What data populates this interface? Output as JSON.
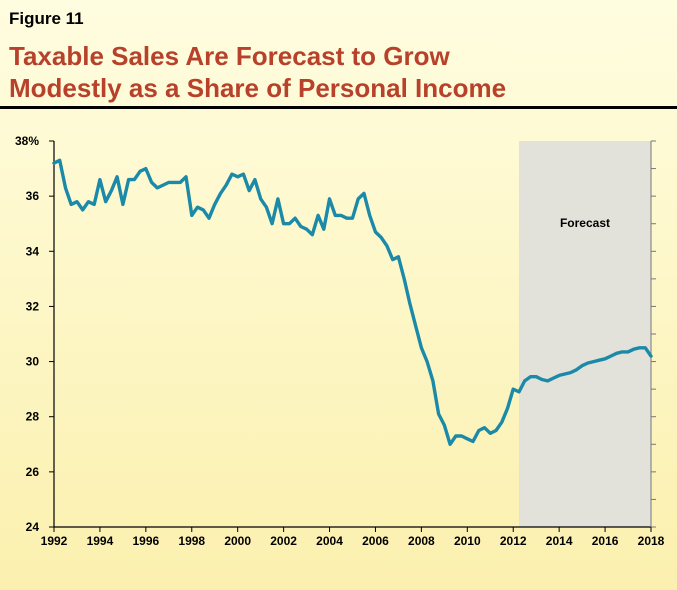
{
  "figure_label": "Figure 11",
  "title_line1": "Taxable Sales Are Forecast to Grow",
  "title_line2": "Modestly as a Share of Personal Income",
  "colors": {
    "line": "#1b8aa8",
    "forecast_shade": "#e2e2da",
    "title": "#b7412a"
  },
  "chart_data": {
    "type": "line",
    "title": "Taxable Sales Are Forecast to Grow Modestly as a Share of Personal Income",
    "xlabel": "",
    "ylabel": "",
    "xlim": [
      1992,
      2018
    ],
    "ylim": [
      24,
      38
    ],
    "y_ticks": [
      "38%",
      "36",
      "34",
      "32",
      "30",
      "28",
      "26",
      "24"
    ],
    "y_tick_values": [
      38,
      36,
      34,
      32,
      30,
      28,
      26,
      24
    ],
    "x_ticks": [
      "1992",
      "1994",
      "1996",
      "1998",
      "2000",
      "2002",
      "2004",
      "2006",
      "2008",
      "2010",
      "2012",
      "2014",
      "2016",
      "2018"
    ],
    "x_tick_values": [
      1992,
      1994,
      1996,
      1998,
      2000,
      2002,
      2004,
      2006,
      2008,
      2010,
      2012,
      2014,
      2016,
      2018
    ],
    "forecast_region": {
      "start": 2012.25,
      "end": 2018,
      "label": "Forecast"
    },
    "series": [
      {
        "points": [
          [
            1992.0,
            37.2
          ],
          [
            1992.25,
            37.3
          ],
          [
            1992.5,
            36.3
          ],
          [
            1992.75,
            35.7
          ],
          [
            1993.0,
            35.8
          ],
          [
            1993.25,
            35.5
          ],
          [
            1993.5,
            35.8
          ],
          [
            1993.75,
            35.7
          ],
          [
            1994.0,
            36.6
          ],
          [
            1994.25,
            35.8
          ],
          [
            1994.5,
            36.2
          ],
          [
            1994.75,
            36.7
          ],
          [
            1995.0,
            35.7
          ],
          [
            1995.25,
            36.6
          ],
          [
            1995.5,
            36.6
          ],
          [
            1995.75,
            36.9
          ],
          [
            1996.0,
            37.0
          ],
          [
            1996.25,
            36.5
          ],
          [
            1996.5,
            36.3
          ],
          [
            1996.75,
            36.4
          ],
          [
            1997.0,
            36.5
          ],
          [
            1997.25,
            36.5
          ],
          [
            1997.5,
            36.5
          ],
          [
            1997.75,
            36.7
          ],
          [
            1998.0,
            35.3
          ],
          [
            1998.25,
            35.6
          ],
          [
            1998.5,
            35.5
          ],
          [
            1998.75,
            35.2
          ],
          [
            1999.0,
            35.7
          ],
          [
            1999.25,
            36.1
          ],
          [
            1999.5,
            36.4
          ],
          [
            1999.75,
            36.8
          ],
          [
            2000.0,
            36.7
          ],
          [
            2000.25,
            36.8
          ],
          [
            2000.5,
            36.2
          ],
          [
            2000.75,
            36.6
          ],
          [
            2001.0,
            35.9
          ],
          [
            2001.25,
            35.6
          ],
          [
            2001.5,
            35.0
          ],
          [
            2001.75,
            35.9
          ],
          [
            2002.0,
            35.0
          ],
          [
            2002.25,
            35.0
          ],
          [
            2002.5,
            35.2
          ],
          [
            2002.75,
            34.9
          ],
          [
            2003.0,
            34.8
          ],
          [
            2003.25,
            34.6
          ],
          [
            2003.5,
            35.3
          ],
          [
            2003.75,
            34.8
          ],
          [
            2004.0,
            35.9
          ],
          [
            2004.25,
            35.3
          ],
          [
            2004.5,
            35.3
          ],
          [
            2004.75,
            35.2
          ],
          [
            2005.0,
            35.2
          ],
          [
            2005.25,
            35.9
          ],
          [
            2005.5,
            36.1
          ],
          [
            2005.75,
            35.3
          ],
          [
            2006.0,
            34.7
          ],
          [
            2006.25,
            34.5
          ],
          [
            2006.5,
            34.2
          ],
          [
            2006.75,
            33.7
          ],
          [
            2007.0,
            33.8
          ],
          [
            2007.25,
            33.0
          ],
          [
            2007.5,
            32.1
          ],
          [
            2007.75,
            31.3
          ],
          [
            2008.0,
            30.5
          ],
          [
            2008.25,
            30.0
          ],
          [
            2008.5,
            29.3
          ],
          [
            2008.75,
            28.1
          ],
          [
            2009.0,
            27.7
          ],
          [
            2009.25,
            27.0
          ],
          [
            2009.5,
            27.3
          ],
          [
            2009.75,
            27.3
          ],
          [
            2010.0,
            27.2
          ],
          [
            2010.25,
            27.1
          ],
          [
            2010.5,
            27.5
          ],
          [
            2010.75,
            27.6
          ],
          [
            2011.0,
            27.4
          ],
          [
            2011.25,
            27.5
          ],
          [
            2011.5,
            27.8
          ],
          [
            2011.75,
            28.3
          ],
          [
            2012.0,
            29.0
          ],
          [
            2012.25,
            28.9
          ],
          [
            2012.5,
            29.3
          ],
          [
            2012.75,
            29.45
          ],
          [
            2013.0,
            29.45
          ],
          [
            2013.25,
            29.35
          ],
          [
            2013.5,
            29.3
          ],
          [
            2013.75,
            29.4
          ],
          [
            2014.0,
            29.5
          ],
          [
            2014.25,
            29.55
          ],
          [
            2014.5,
            29.6
          ],
          [
            2014.75,
            29.7
          ],
          [
            2015.0,
            29.85
          ],
          [
            2015.25,
            29.95
          ],
          [
            2015.5,
            30.0
          ],
          [
            2015.75,
            30.05
          ],
          [
            2016.0,
            30.1
          ],
          [
            2016.25,
            30.2
          ],
          [
            2016.5,
            30.3
          ],
          [
            2016.75,
            30.35
          ],
          [
            2017.0,
            30.35
          ],
          [
            2017.25,
            30.45
          ],
          [
            2017.5,
            30.5
          ],
          [
            2017.75,
            30.5
          ],
          [
            2018.0,
            30.2
          ]
        ]
      }
    ]
  }
}
